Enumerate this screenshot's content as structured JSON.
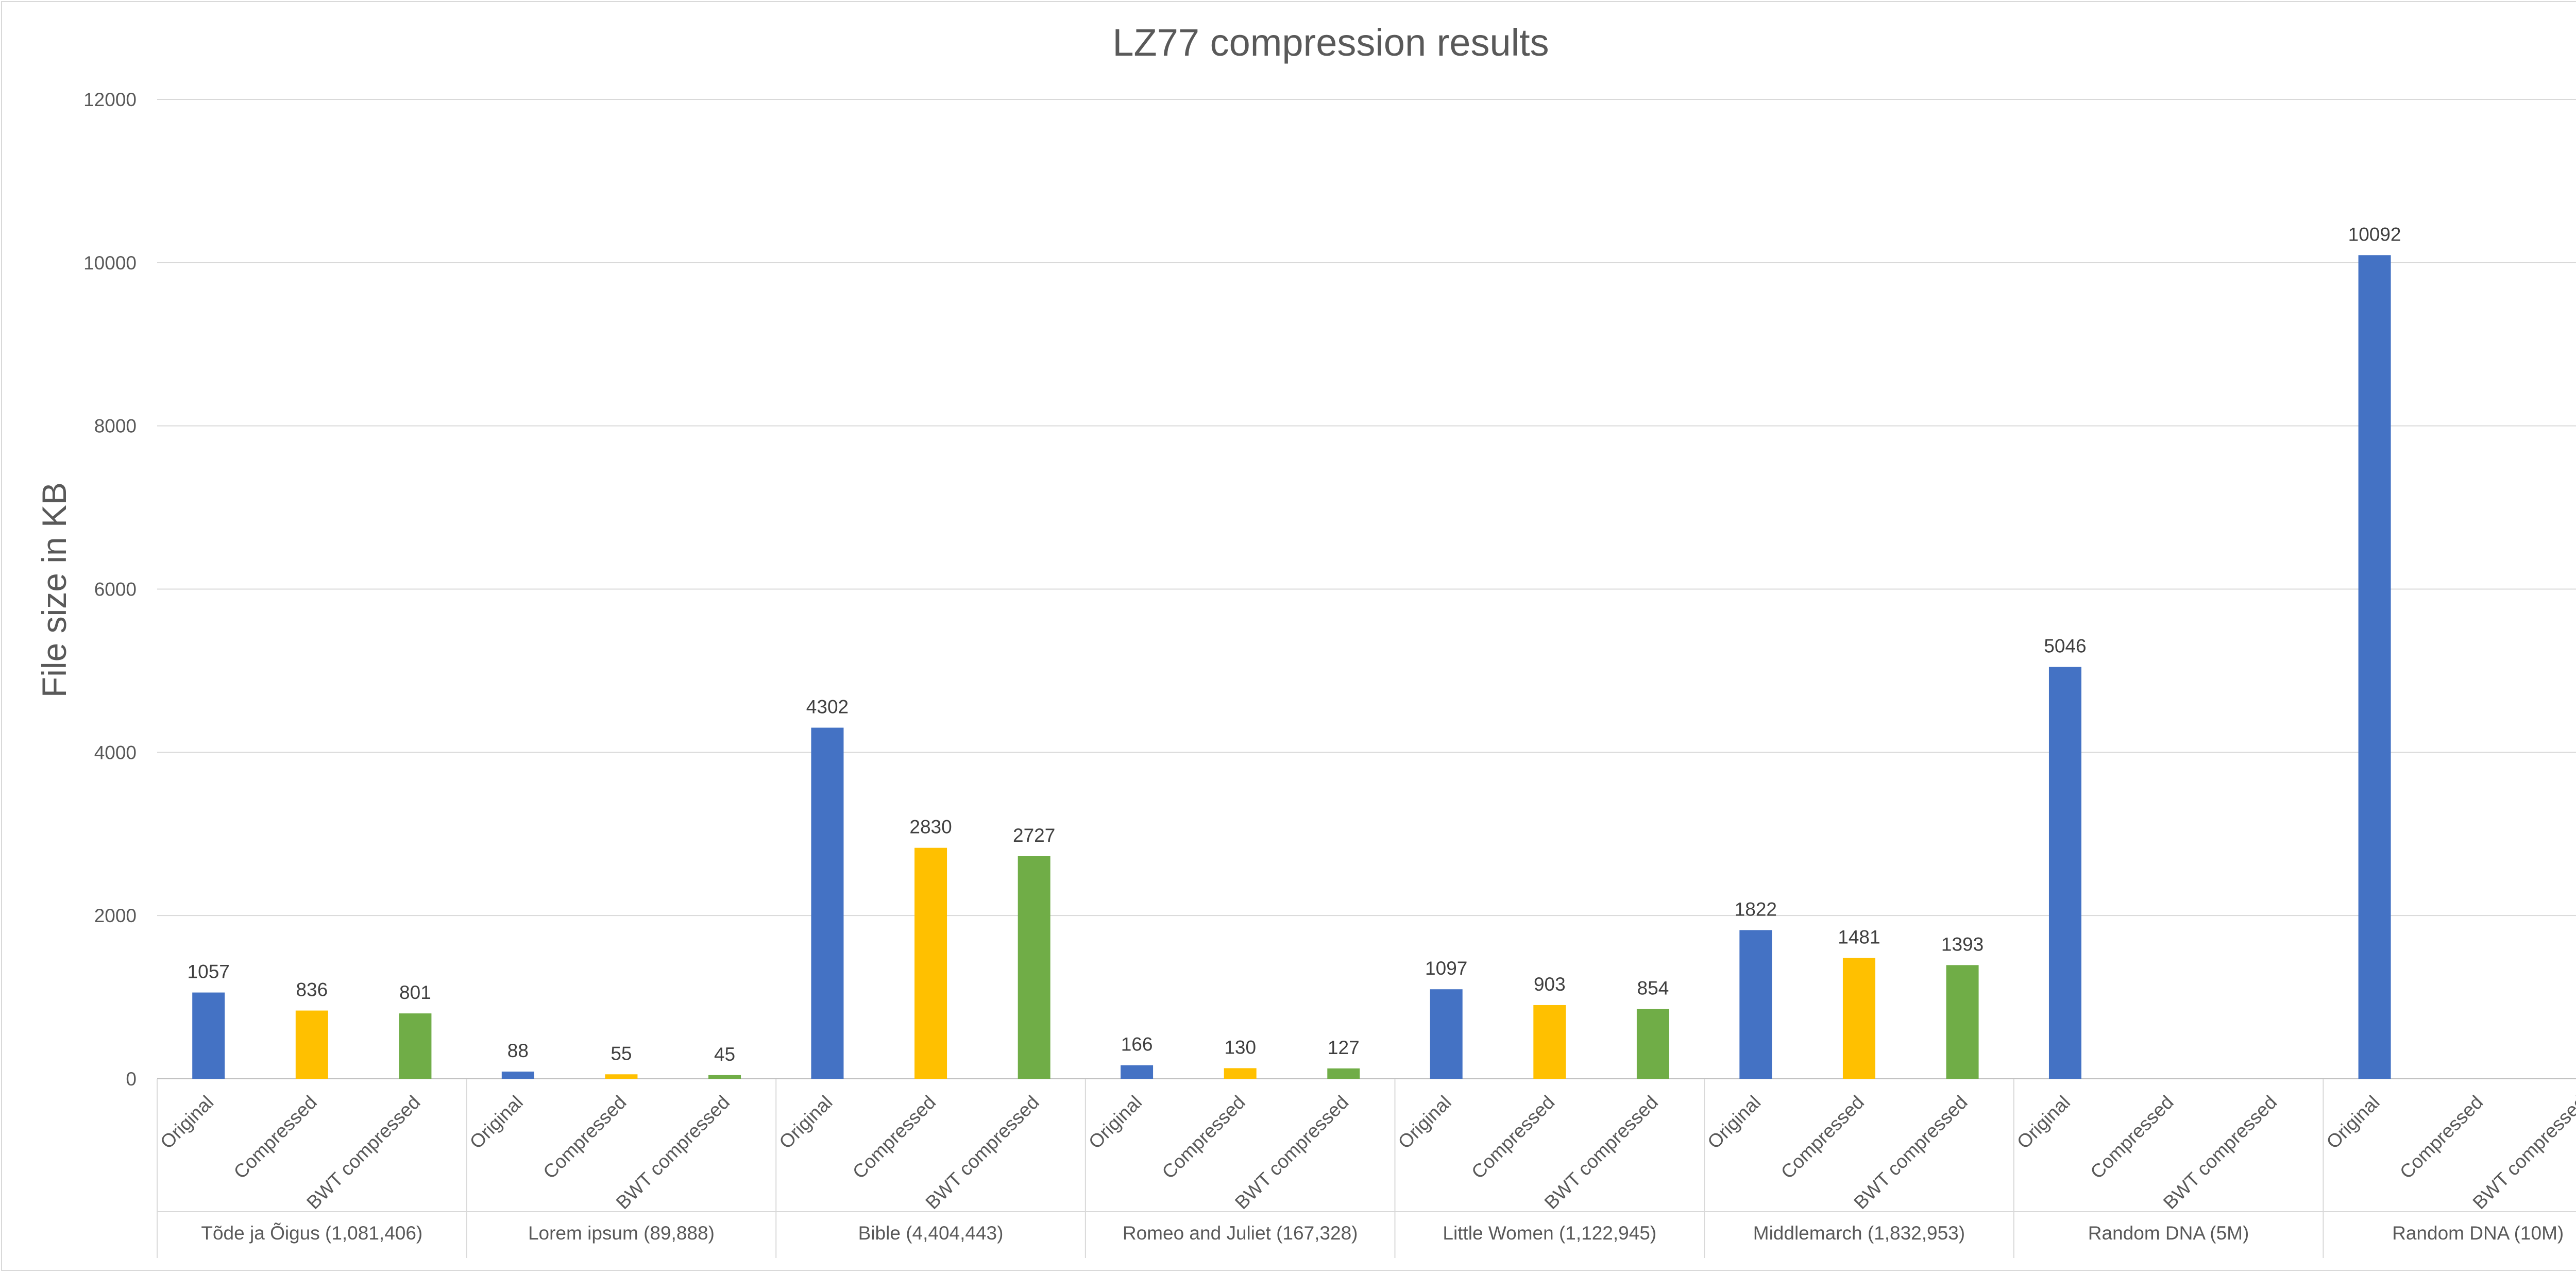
{
  "chart_data": {
    "type": "bar",
    "title": "LZ77 compression results",
    "xlabel": "",
    "ylabel": "File size in KB",
    "ylim": [
      0,
      12000
    ],
    "yticks": [
      0,
      2000,
      4000,
      6000,
      8000,
      10000,
      12000
    ],
    "grid": true,
    "legend": "none",
    "bar_colors": {
      "Original": "#4472C4",
      "Compressed": "#FFC000",
      "BWT compressed": "#70AD47"
    },
    "groups": [
      {
        "name": "Tõde ja Õigus (1,081,406)",
        "bars": [
          {
            "label": "Original",
            "value": 1057
          },
          {
            "label": "Compressed",
            "value": 836
          },
          {
            "label": "BWT compressed",
            "value": 801
          }
        ]
      },
      {
        "name": "Lorem ipsum (89,888)",
        "bars": [
          {
            "label": "Original",
            "value": 88
          },
          {
            "label": "Compressed",
            "value": 55
          },
          {
            "label": "BWT compressed",
            "value": 45
          }
        ]
      },
      {
        "name": "Bible (4,404,443)",
        "bars": [
          {
            "label": "Original",
            "value": 4302
          },
          {
            "label": "Compressed",
            "value": 2830
          },
          {
            "label": "BWT compressed",
            "value": 2727
          }
        ]
      },
      {
        "name": "Romeo and Juliet (167,328)",
        "bars": [
          {
            "label": "Original",
            "value": 166
          },
          {
            "label": "Compressed",
            "value": 130
          },
          {
            "label": "BWT compressed",
            "value": 127
          }
        ]
      },
      {
        "name": "Little Women (1,122,945)",
        "bars": [
          {
            "label": "Original",
            "value": 1097
          },
          {
            "label": "Compressed",
            "value": 903
          },
          {
            "label": "BWT compressed",
            "value": 854
          }
        ]
      },
      {
        "name": "Middlemarch (1,832,953)",
        "bars": [
          {
            "label": "Original",
            "value": 1822
          },
          {
            "label": "Compressed",
            "value": 1481
          },
          {
            "label": "BWT compressed",
            "value": 1393
          }
        ]
      },
      {
        "name": "Random DNA (5M)",
        "bars": [
          {
            "label": "Original",
            "value": 5046
          },
          {
            "label": "Compressed",
            "value": null
          },
          {
            "label": "BWT compressed",
            "value": null
          }
        ]
      },
      {
        "name": "Random DNA (10M)",
        "bars": [
          {
            "label": "Original",
            "value": 10092
          },
          {
            "label": "Compressed",
            "value": null
          },
          {
            "label": "BWT compressed",
            "value": null
          }
        ]
      }
    ]
  }
}
